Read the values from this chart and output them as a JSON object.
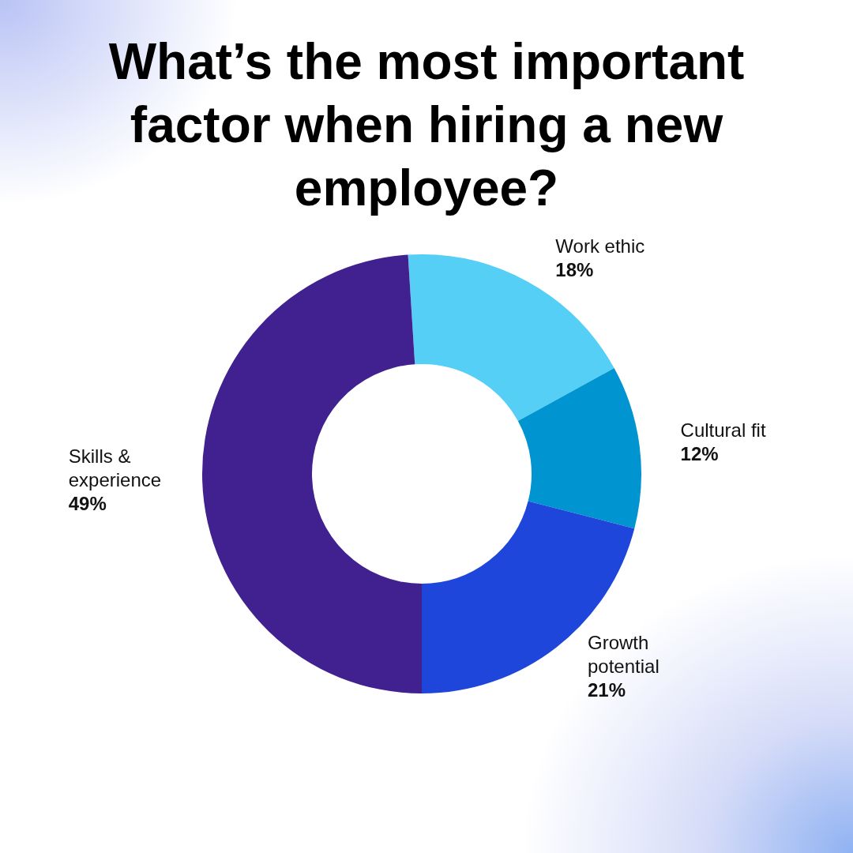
{
  "chart_data": {
    "type": "donut",
    "title": "What’s the most important factor when hiring a new employee?",
    "categories": [
      "Work ethic",
      "Cultural fit",
      "Growth potential",
      "Skills & experience"
    ],
    "values": [
      18,
      12,
      21,
      49
    ],
    "colors": [
      "#55cff5",
      "#0094d0",
      "#1e46db",
      "#41208f"
    ],
    "value_labels": [
      "18%",
      "12%",
      "21%",
      "49%"
    ],
    "legend": false
  }
}
